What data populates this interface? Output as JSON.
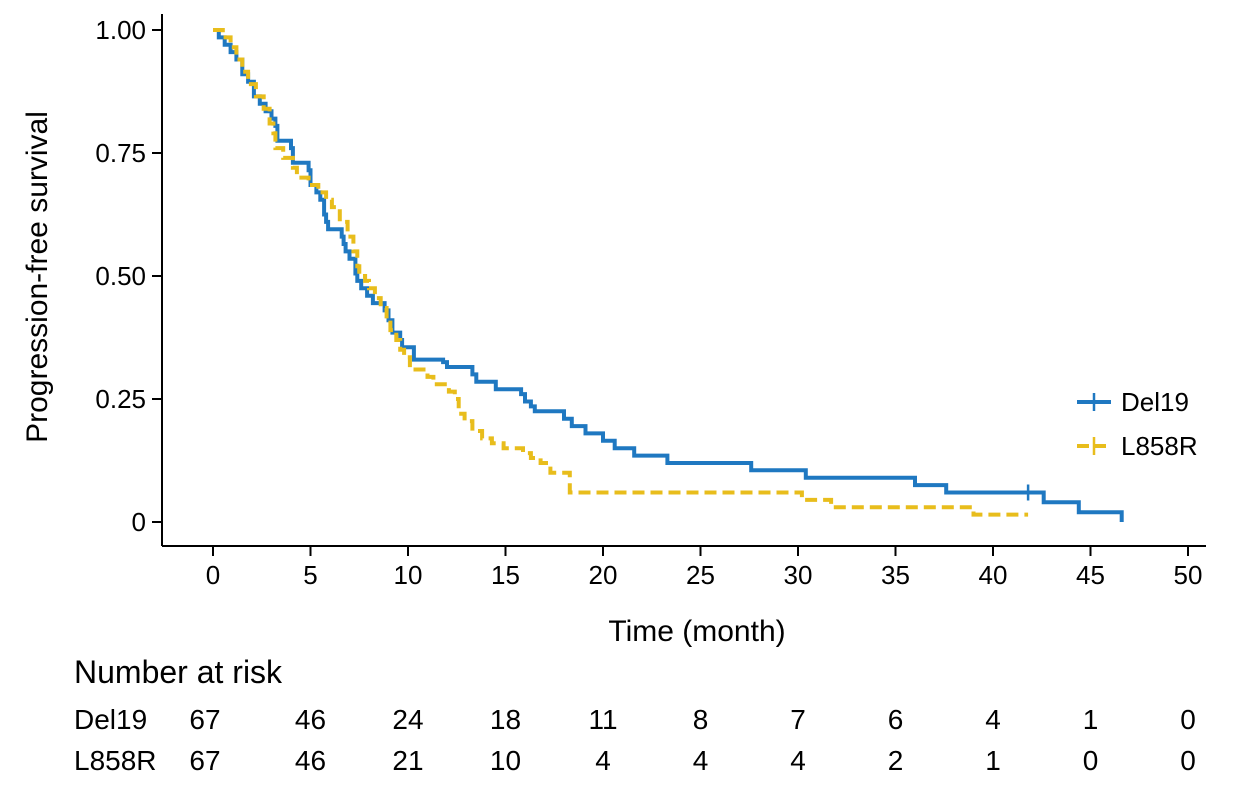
{
  "chart_data": {
    "type": "line",
    "title": "",
    "xlabel": "Time (month)",
    "ylabel": "Progression-free survival",
    "xlim": [
      0,
      50
    ],
    "ylim": [
      0,
      1
    ],
    "x_ticks": [
      0,
      5,
      10,
      15,
      20,
      25,
      30,
      35,
      40,
      45,
      50
    ],
    "y_ticks": [
      {
        "value": 0,
        "label": "0"
      },
      {
        "value": 0.25,
        "label": "0.25"
      },
      {
        "value": 0.5,
        "label": "0.50"
      },
      {
        "value": 0.75,
        "label": "0.75"
      },
      {
        "value": 1,
        "label": "1.00"
      }
    ],
    "grid": false,
    "legend_position": "right",
    "step": true,
    "series": [
      {
        "name": "Del19",
        "color": "#1f78c1",
        "line_style": "solid",
        "points": [
          [
            0,
            1.0
          ],
          [
            0.3,
            0.985
          ],
          [
            0.6,
            0.97
          ],
          [
            0.9,
            0.955
          ],
          [
            1.2,
            0.94
          ],
          [
            1.5,
            0.91
          ],
          [
            1.8,
            0.895
          ],
          [
            2.1,
            0.865
          ],
          [
            2.4,
            0.85
          ],
          [
            2.7,
            0.835
          ],
          [
            3.0,
            0.82
          ],
          [
            3.2,
            0.805
          ],
          [
            3.3,
            0.775
          ],
          [
            4.0,
            0.76
          ],
          [
            4.1,
            0.73
          ],
          [
            4.9,
            0.715
          ],
          [
            5.0,
            0.685
          ],
          [
            5.3,
            0.67
          ],
          [
            5.5,
            0.655
          ],
          [
            5.7,
            0.625
          ],
          [
            5.8,
            0.61
          ],
          [
            5.9,
            0.595
          ],
          [
            6.6,
            0.58
          ],
          [
            6.7,
            0.565
          ],
          [
            6.8,
            0.55
          ],
          [
            7.0,
            0.535
          ],
          [
            7.3,
            0.505
          ],
          [
            7.4,
            0.49
          ],
          [
            7.6,
            0.475
          ],
          [
            7.9,
            0.46
          ],
          [
            8.2,
            0.445
          ],
          [
            8.8,
            0.43
          ],
          [
            9.0,
            0.41
          ],
          [
            9.2,
            0.385
          ],
          [
            9.6,
            0.37
          ],
          [
            9.7,
            0.355
          ],
          [
            10.3,
            0.33
          ],
          [
            11.8,
            0.325
          ],
          [
            12.0,
            0.315
          ],
          [
            13.3,
            0.3
          ],
          [
            13.5,
            0.285
          ],
          [
            14.5,
            0.27
          ],
          [
            15.8,
            0.26
          ],
          [
            16.0,
            0.245
          ],
          [
            16.3,
            0.235
          ],
          [
            16.5,
            0.225
          ],
          [
            18.0,
            0.21
          ],
          [
            18.4,
            0.195
          ],
          [
            19.1,
            0.18
          ],
          [
            20.0,
            0.165
          ],
          [
            20.6,
            0.15
          ],
          [
            21.6,
            0.135
          ],
          [
            23.3,
            0.12
          ],
          [
            27.6,
            0.105
          ],
          [
            30.4,
            0.09
          ],
          [
            36.0,
            0.075
          ],
          [
            37.6,
            0.06
          ],
          [
            42.6,
            0.04
          ],
          [
            44.4,
            0.02
          ],
          [
            46.6,
            0.0
          ]
        ],
        "censor": [
          [
            41.8,
            0.06
          ]
        ]
      },
      {
        "name": "L858R",
        "color": "#e8bd1c",
        "line_style": "dashed",
        "points": [
          [
            0,
            1.0
          ],
          [
            0.5,
            0.985
          ],
          [
            0.9,
            0.965
          ],
          [
            1.2,
            0.94
          ],
          [
            1.5,
            0.915
          ],
          [
            1.8,
            0.89
          ],
          [
            2.2,
            0.865
          ],
          [
            2.6,
            0.84
          ],
          [
            2.9,
            0.81
          ],
          [
            3.1,
            0.79
          ],
          [
            3.2,
            0.76
          ],
          [
            3.6,
            0.74
          ],
          [
            4.1,
            0.72
          ],
          [
            4.3,
            0.7
          ],
          [
            4.9,
            0.685
          ],
          [
            5.4,
            0.67
          ],
          [
            5.8,
            0.655
          ],
          [
            6.1,
            0.64
          ],
          [
            6.5,
            0.61
          ],
          [
            6.9,
            0.58
          ],
          [
            7.2,
            0.55
          ],
          [
            7.4,
            0.52
          ],
          [
            7.5,
            0.5
          ],
          [
            7.8,
            0.49
          ],
          [
            8.0,
            0.475
          ],
          [
            8.3,
            0.455
          ],
          [
            8.6,
            0.435
          ],
          [
            8.9,
            0.41
          ],
          [
            9.1,
            0.39
          ],
          [
            9.4,
            0.37
          ],
          [
            9.6,
            0.35
          ],
          [
            9.8,
            0.335
          ],
          [
            10.1,
            0.31
          ],
          [
            11.0,
            0.295
          ],
          [
            11.3,
            0.28
          ],
          [
            12.1,
            0.265
          ],
          [
            12.4,
            0.25
          ],
          [
            12.6,
            0.22
          ],
          [
            12.9,
            0.205
          ],
          [
            13.3,
            0.185
          ],
          [
            13.8,
            0.17
          ],
          [
            14.3,
            0.16
          ],
          [
            14.9,
            0.15
          ],
          [
            15.9,
            0.14
          ],
          [
            16.3,
            0.13
          ],
          [
            16.8,
            0.12
          ],
          [
            17.3,
            0.1
          ],
          [
            18.3,
            0.06
          ],
          [
            30.2,
            0.045
          ],
          [
            31.7,
            0.03
          ],
          [
            39.0,
            0.015
          ],
          [
            41.8,
            0.015
          ]
        ],
        "censor": []
      }
    ],
    "risk_table": {
      "title": "Number at risk",
      "times": [
        0,
        5,
        10,
        15,
        20,
        25,
        30,
        35,
        40,
        45,
        50
      ],
      "rows": [
        {
          "group": "Del19",
          "values": [
            "67",
            "46",
            "24",
            "18",
            "11",
            "8",
            "7",
            "6",
            "4",
            "1",
            "0"
          ]
        },
        {
          "group": "L858R",
          "values": [
            "67",
            "46",
            "21",
            "10",
            "4",
            "4",
            "4",
            "2",
            "1",
            "0",
            "0"
          ]
        }
      ]
    }
  }
}
